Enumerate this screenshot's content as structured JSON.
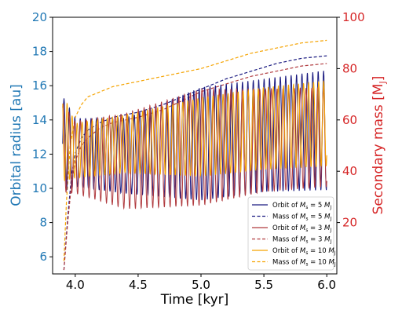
{
  "chart_data": {
    "type": "line",
    "xlabel": "Time [kyr]",
    "ylabel_left": "Orbital radius [au]",
    "ylabel_right": "Secondary mass [M",
    "ylabel_right_sub": "J",
    "ylabel_right_end": "]",
    "xlim": [
      3.82,
      6.08
    ],
    "ylim_left": [
      5.0,
      20.0
    ],
    "ylim_right": [
      0,
      100
    ],
    "x_ticks": [
      "4.0",
      "4.5",
      "5.0",
      "5.5",
      "6.0"
    ],
    "x_tick_values": [
      4.0,
      4.5,
      5.0,
      5.5,
      6.0
    ],
    "y_ticks_left": [
      "6",
      "8",
      "10",
      "12",
      "14",
      "16",
      "18",
      "20"
    ],
    "y_tick_values_left": [
      6,
      8,
      10,
      12,
      14,
      16,
      18,
      20
    ],
    "y_ticks_right": [
      "20",
      "40",
      "60",
      "80",
      "100"
    ],
    "y_tick_values_right": [
      20,
      40,
      60,
      80,
      100
    ],
    "left_axis_color": "#1f77b4",
    "right_axis_color": "#d62728",
    "legend_position": "lower-right",
    "orbit_series": [
      {
        "legend_prefix": "Orbit of ",
        "legend_value": "5",
        "color": "#1a1a80",
        "x_start": 3.9,
        "x_end": 6.0,
        "period_kyr": 0.043,
        "center": [
          [
            3.9,
            12.6
          ],
          [
            4.0,
            12.1
          ],
          [
            4.4,
            11.9
          ],
          [
            5.0,
            12.6
          ],
          [
            5.5,
            13.1
          ],
          [
            6.0,
            13.4
          ]
        ],
        "amplitude": [
          [
            3.9,
            2.8
          ],
          [
            4.0,
            2.0
          ],
          [
            4.4,
            2.2
          ],
          [
            5.0,
            3.3
          ],
          [
            5.5,
            3.3
          ],
          [
            6.0,
            3.5
          ]
        ],
        "phase": 0
      },
      {
        "legend_prefix": "Orbit of ",
        "legend_value": "3",
        "color": "#b03a3e",
        "x_start": 3.9,
        "x_end": 6.0,
        "period_kyr": 0.046,
        "center": [
          [
            3.9,
            12.4
          ],
          [
            4.0,
            11.8
          ],
          [
            4.4,
            11.6
          ],
          [
            5.0,
            12.4
          ],
          [
            5.5,
            12.8
          ],
          [
            6.0,
            13.0
          ]
        ],
        "amplitude": [
          [
            3.9,
            2.6
          ],
          [
            4.0,
            2.1
          ],
          [
            4.4,
            2.8
          ],
          [
            5.0,
            3.4
          ],
          [
            5.5,
            3.0
          ],
          [
            6.0,
            2.9
          ]
        ],
        "phase": 1.1
      },
      {
        "legend_prefix": "Orbit of ",
        "legend_value": "10",
        "color": "#f5a300",
        "x_start": 3.9,
        "x_end": 6.0,
        "period_kyr": 0.04,
        "center": [
          [
            3.9,
            13.0
          ],
          [
            4.0,
            12.2
          ],
          [
            4.4,
            12.6
          ],
          [
            5.0,
            13.0
          ],
          [
            5.5,
            13.5
          ],
          [
            6.0,
            13.8
          ]
        ],
        "amplitude": [
          [
            3.9,
            2.6
          ],
          [
            4.0,
            1.6
          ],
          [
            4.4,
            1.7
          ],
          [
            5.0,
            2.3
          ],
          [
            5.5,
            2.4
          ],
          [
            6.0,
            2.5
          ]
        ],
        "phase": 2.3
      }
    ],
    "mass_series": [
      {
        "legend_prefix": "Mass of ",
        "legend_value": "5",
        "color": "#1a1a80",
        "x": [
          3.91,
          3.94,
          3.97,
          4.0,
          4.05,
          4.1,
          4.2,
          4.3,
          4.5,
          4.7,
          5.0,
          5.2,
          5.4,
          5.6,
          5.8,
          6.0
        ],
        "y": [
          1.5,
          22,
          38,
          47,
          53,
          56,
          59,
          61,
          63,
          66,
          72,
          76,
          79,
          82,
          84,
          85
        ]
      },
      {
        "legend_prefix": "Mass of ",
        "legend_value": "3",
        "color": "#b03a3e",
        "x": [
          3.91,
          3.94,
          3.97,
          4.0,
          4.05,
          4.1,
          4.2,
          4.3,
          4.5,
          4.7,
          5.0,
          5.2,
          5.4,
          5.6,
          5.8,
          6.0
        ],
        "y": [
          1.5,
          20,
          35,
          44,
          50,
          53,
          57,
          59,
          61,
          64,
          71,
          74,
          77,
          79,
          81,
          82
        ]
      },
      {
        "legend_prefix": "Mass of ",
        "legend_value": "10",
        "color": "#f5a300",
        "x": [
          3.91,
          3.93,
          3.96,
          4.0,
          4.05,
          4.1,
          4.2,
          4.3,
          4.5,
          4.7,
          5.0,
          5.2,
          5.4,
          5.6,
          5.8,
          6.0
        ],
        "y": [
          5,
          28,
          50,
          61,
          66,
          69,
          71,
          73,
          75,
          77,
          80,
          83,
          86,
          88,
          90,
          91
        ]
      }
    ]
  }
}
